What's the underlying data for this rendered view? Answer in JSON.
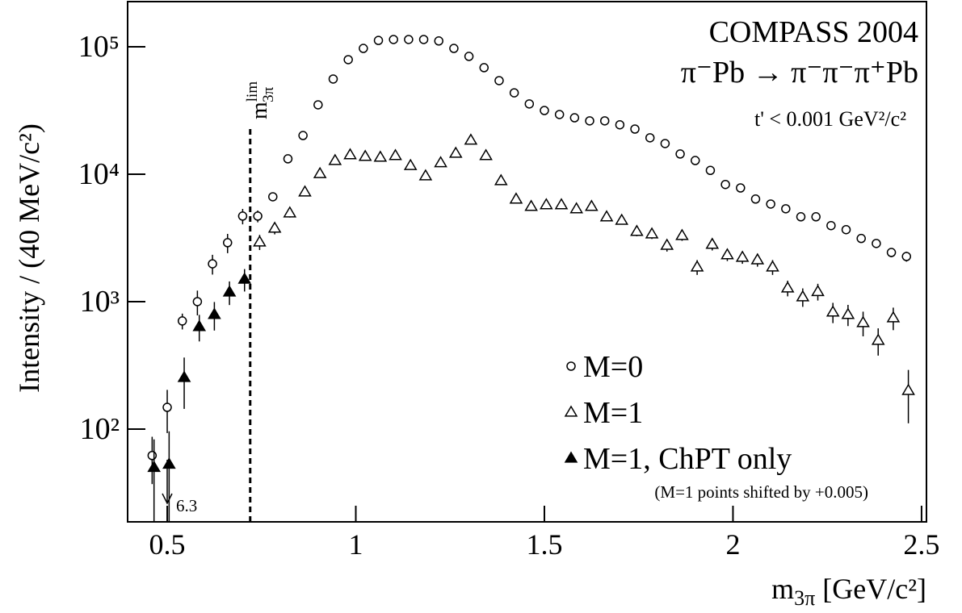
{
  "chart_data": {
    "type": "scatter",
    "y_label": "Intensity / (40 MeV/c²)",
    "x_label": [
      "m",
      "3π",
      " [GeV/c²]"
    ],
    "annotations": {
      "experiment": "COMPASS 2004",
      "reaction": "π⁻Pb → π⁻π⁻π⁺Pb",
      "cut": "t' < 0.001 GeV²/c²",
      "shift_note": "(M=1 points shifted by +0.005)",
      "limit_value": "6.3",
      "lim_label": [
        "m",
        "lim",
        "3π"
      ]
    },
    "lim_line": {
      "x": 0.72
    },
    "log_y": true,
    "grid": false,
    "legend": "lower right",
    "xlim": [
      0.395,
      2.513
    ],
    "ylim": [
      18.7,
      226000
    ],
    "xticks": [
      0.5,
      1,
      1.5,
      2,
      2.5
    ],
    "yticks": [
      {
        "value": 100,
        "label": "10²"
      },
      {
        "value": 1000,
        "label": "10³"
      },
      {
        "value": 10000,
        "label": "10⁴"
      },
      {
        "value": 100000,
        "label": "10⁵"
      }
    ],
    "series": [
      {
        "name": "M=0",
        "marker": "circle",
        "color": "#000000",
        "x": [
          0.46,
          0.5,
          0.54,
          0.58,
          0.62,
          0.66,
          0.7,
          0.74,
          0.78,
          0.82,
          0.86,
          0.9,
          0.94,
          0.98,
          1.02,
          1.06,
          1.1,
          1.14,
          1.18,
          1.22,
          1.26,
          1.3,
          1.34,
          1.38,
          1.42,
          1.46,
          1.5,
          1.54,
          1.58,
          1.62,
          1.66,
          1.7,
          1.74,
          1.78,
          1.82,
          1.86,
          1.9,
          1.94,
          1.98,
          2.02,
          2.06,
          2.1,
          2.14,
          2.18,
          2.22,
          2.26,
          2.3,
          2.34,
          2.38,
          2.42,
          2.46
        ],
        "values": [
          62,
          148,
          705,
          1000,
          1980,
          2900,
          4690,
          4690,
          6650,
          13200,
          20100,
          35000,
          55800,
          79200,
          97000,
          112000,
          114000,
          114000,
          114000,
          111000,
          97000,
          84000,
          68500,
          54200,
          43500,
          35600,
          31600,
          29400,
          27700,
          26200,
          26200,
          24400,
          22600,
          19300,
          17400,
          14400,
          12800,
          10700,
          8300,
          7800,
          6380,
          5830,
          5350,
          4630,
          4630,
          3950,
          3670,
          3130,
          2860,
          2430,
          2260
        ],
        "errors": [
          25,
          55,
          100,
          220,
          350,
          500,
          650,
          500,
          400,
          300,
          300,
          400,
          500,
          600,
          600,
          700,
          700,
          700,
          700,
          700,
          600,
          600,
          500,
          500,
          400,
          400,
          400,
          400,
          400,
          400,
          400,
          400,
          400,
          300,
          300,
          300,
          300,
          300,
          250,
          250,
          250,
          250,
          200,
          200,
          200,
          200,
          200,
          200,
          200,
          200,
          200
        ]
      },
      {
        "name": "M=1",
        "marker": "triangle",
        "color": "#000000",
        "x": [
          0.745,
          0.785,
          0.825,
          0.865,
          0.905,
          0.945,
          0.985,
          1.025,
          1.065,
          1.105,
          1.145,
          1.185,
          1.225,
          1.265,
          1.305,
          1.345,
          1.385,
          1.425,
          1.465,
          1.505,
          1.545,
          1.585,
          1.625,
          1.665,
          1.705,
          1.745,
          1.785,
          1.825,
          1.865,
          1.905,
          1.945,
          1.985,
          2.025,
          2.065,
          2.105,
          2.145,
          2.185,
          2.225,
          2.265,
          2.305,
          2.345,
          2.385,
          2.425,
          2.465
        ],
        "values": [
          2940,
          3770,
          4970,
          7260,
          10100,
          12800,
          14200,
          13800,
          13600,
          14000,
          11700,
          9710,
          12300,
          14600,
          18500,
          14000,
          8890,
          6380,
          5590,
          5760,
          5760,
          5350,
          5590,
          4630,
          4350,
          3560,
          3400,
          2770,
          3300,
          1870,
          2820,
          2330,
          2230,
          2130,
          1870,
          1280,
          1090,
          1200,
          828,
          793,
          684,
          497,
          747,
          201
        ],
        "errors": [
          400,
          400,
          400,
          450,
          500,
          500,
          500,
          500,
          500,
          500,
          500,
          500,
          500,
          500,
          600,
          500,
          400,
          300,
          300,
          300,
          300,
          300,
          300,
          300,
          300,
          300,
          300,
          300,
          300,
          250,
          300,
          250,
          250,
          250,
          250,
          180,
          180,
          180,
          150,
          150,
          150,
          120,
          150,
          90
        ]
      },
      {
        "name": "M=1, ChPT only",
        "marker": "triangle-filled",
        "color": "#000000",
        "x": [
          0.465,
          0.505,
          0.545,
          0.585,
          0.625,
          0.665,
          0.705
        ],
        "values": [
          50,
          53,
          254,
          637,
          793,
          1190,
          1500
        ],
        "errors": [
          33,
          43,
          110,
          150,
          200,
          250,
          300
        ]
      }
    ]
  }
}
